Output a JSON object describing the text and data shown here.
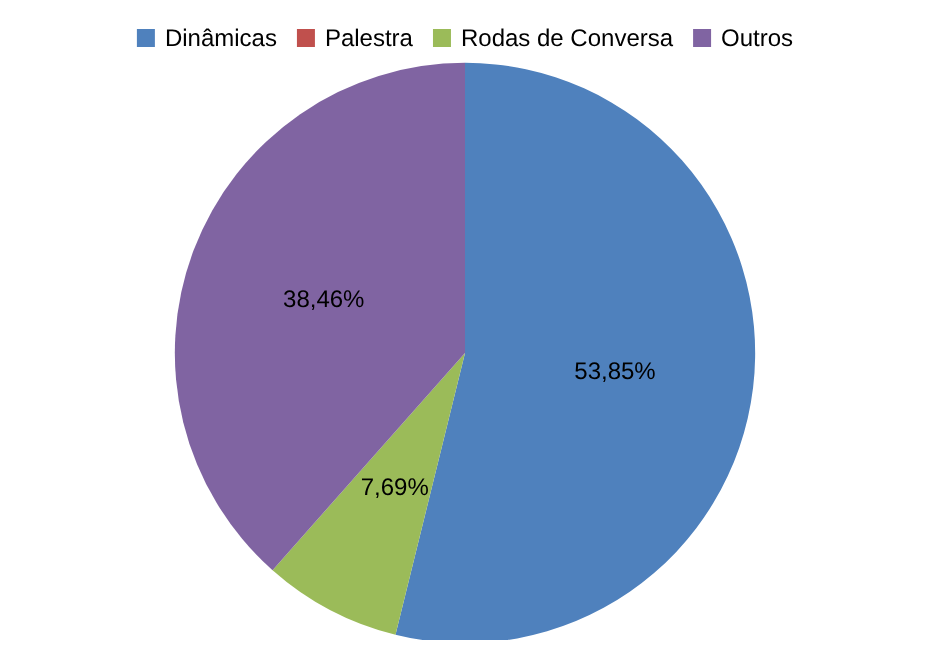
{
  "chart_data": {
    "type": "pie",
    "categories": [
      "Dinâmicas",
      "Palestra",
      "Rodas de Conversa",
      "Outros"
    ],
    "values": [
      53.85,
      0,
      7.69,
      38.46
    ],
    "colors": [
      "#4f81bd",
      "#c0504d",
      "#9bbb59",
      "#8064a2"
    ],
    "value_labels": [
      "53,85%",
      null,
      "7,69%",
      "38,46%"
    ],
    "legend": "top"
  }
}
